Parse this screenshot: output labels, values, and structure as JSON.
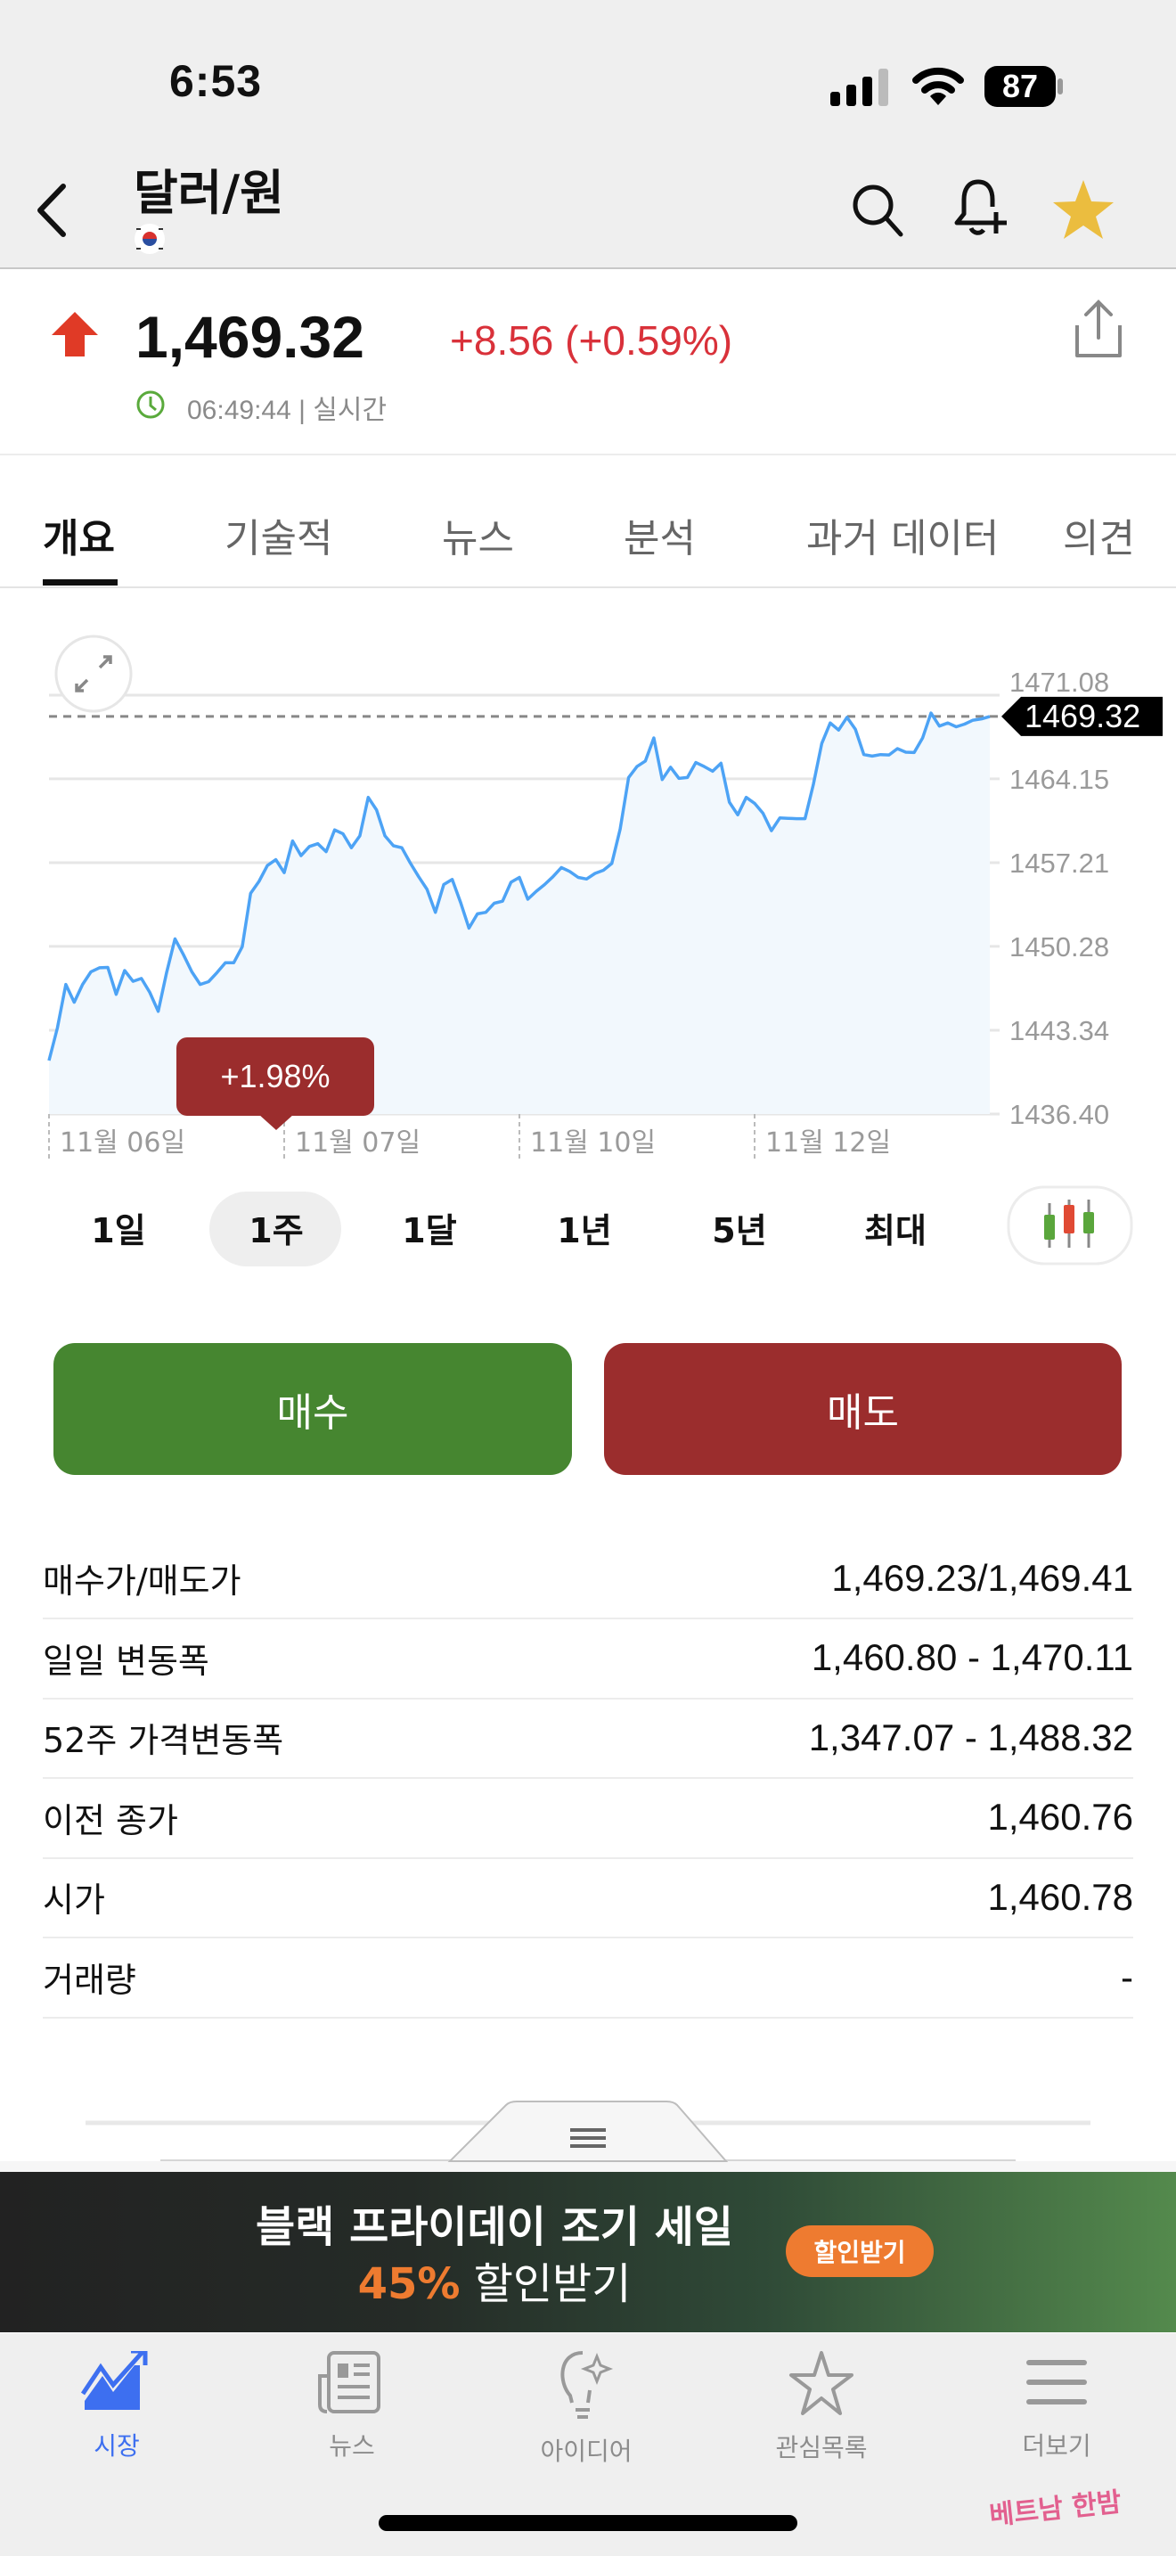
{
  "status_bar": {
    "time": "6:53",
    "battery": "87"
  },
  "header": {
    "title": "달러/원",
    "flag": "south-korea-flag",
    "icons": [
      "back-icon",
      "search-icon",
      "bell-plus-icon",
      "star-icon"
    ],
    "star_color": "#ebbd3f"
  },
  "quote": {
    "price": "1,469.32",
    "change": "+8.56 (+0.59%)",
    "time": "06:49:44 | 실시간",
    "up_color": "#e03a26",
    "change_color": "#d9313a"
  },
  "tabs": [
    {
      "label": "개요",
      "active": true
    },
    {
      "label": "기술적"
    },
    {
      "label": "뉴스"
    },
    {
      "label": "분석"
    },
    {
      "label": "과거 데이터"
    },
    {
      "label": "의견"
    }
  ],
  "chart_data": {
    "type": "area",
    "ylim": [
      1436.4,
      1471.08
    ],
    "y_ticks": [
      "1471.08",
      "1464.15",
      "1457.21",
      "1450.28",
      "1443.34",
      "1436.40"
    ],
    "x_ticks": [
      {
        "index": 0,
        "label": "11월 06일"
      },
      {
        "index": 28,
        "label": "11월 07일"
      },
      {
        "index": 56,
        "label": "11월 10일"
      },
      {
        "index": 84,
        "label": "11월 12일"
      }
    ],
    "last_value": "1469.32",
    "line_color": "#4da3f5",
    "grid": true,
    "values": [
      1440.83,
      1443.52,
      1447.13,
      1445.65,
      1447.13,
      1448.18,
      1448.51,
      1448.54,
      1446.31,
      1448.28,
      1447.39,
      1447.62,
      1446.47,
      1444.9,
      1448.11,
      1450.9,
      1449.59,
      1448.18,
      1447.13,
      1447.36,
      1448.11,
      1448.93,
      1448.93,
      1450.25,
      1454.67,
      1455.66,
      1456.97,
      1457.46,
      1456.38,
      1459.01,
      1457.79,
      1458.55,
      1458.78,
      1458.12,
      1459.92,
      1459.6,
      1458.45,
      1459.43,
      1462.62,
      1461.57,
      1459.43,
      1458.61,
      1458.45,
      1457.2,
      1456.05,
      1455.0,
      1453.1,
      1455.4,
      1455.82,
      1453.92,
      1451.79,
      1452.97,
      1453.1,
      1453.85,
      1454.02,
      1455.59,
      1455.99,
      1454.18,
      1454.84,
      1455.4,
      1456.05,
      1456.81,
      1456.48,
      1455.99,
      1455.86,
      1456.32,
      1456.58,
      1457.14,
      1459.99,
      1464.26,
      1465.17,
      1465.63,
      1467.54,
      1464.09,
      1465.11,
      1464.19,
      1464.26,
      1465.5,
      1465.17,
      1464.78,
      1465.44,
      1462.22,
      1461.17,
      1462.62,
      1462.12,
      1461.3,
      1459.86,
      1460.91,
      1460.88,
      1460.85,
      1460.85,
      1463.7,
      1467.08,
      1468.78,
      1468.19,
      1469.24,
      1468.26,
      1466.16,
      1466.03,
      1466.16,
      1466.13,
      1466.65,
      1466.36,
      1466.33,
      1467.54,
      1469.6,
      1468.52,
      1468.78,
      1468.46,
      1468.68,
      1469.01,
      1469.11,
      1469.32
    ]
  },
  "tooltip": {
    "text": "+1.98%"
  },
  "ranges": [
    {
      "label": "1일"
    },
    {
      "label": "1주",
      "selected": true
    },
    {
      "label": "1달"
    },
    {
      "label": "1년"
    },
    {
      "label": "5년"
    },
    {
      "label": "최대"
    }
  ],
  "actions": {
    "buy": "매수",
    "sell": "매도",
    "buy_color": "#468630",
    "sell_color": "#9b2d2d"
  },
  "stats": [
    {
      "label": "매수가/매도가",
      "value": "1,469.23/1,469.41"
    },
    {
      "label": "일일 변동폭",
      "value": "1,460.80 - 1,470.11"
    },
    {
      "label": "52주 가격변동폭",
      "value": "1,347.07 - 1,488.32"
    },
    {
      "label": "이전 종가",
      "value": "1,460.76"
    },
    {
      "label": "시가",
      "value": "1,460.78"
    },
    {
      "label": "거래량",
      "value": "-"
    }
  ],
  "ad": {
    "line1": "블랙 프라이데이 조기 세일",
    "highlight": "45%",
    "line2": " 할인받기",
    "button": "할인받기",
    "accent": "#ee7b30"
  },
  "nav": [
    {
      "label": "시장",
      "active": true
    },
    {
      "label": "뉴스"
    },
    {
      "label": "아이디어"
    },
    {
      "label": "관심목록"
    },
    {
      "label": "더보기"
    }
  ],
  "watermark": "베트남 한밤"
}
